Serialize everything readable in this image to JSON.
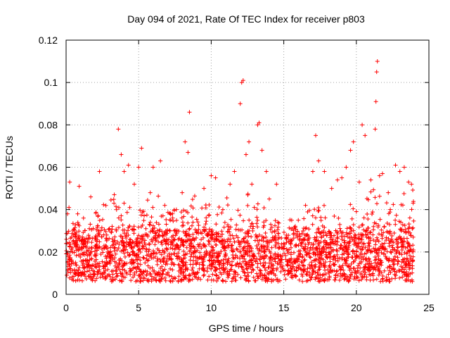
{
  "chart_data": {
    "type": "scatter",
    "title": "Day 094 of 2021, Rate Of TEC Index for receiver p803",
    "xlabel": "GPS time / hours",
    "ylabel": "ROTI / TECUs",
    "xlim": [
      0,
      25
    ],
    "ylim": [
      0,
      0.12
    ],
    "xticks": [
      0,
      5,
      10,
      15,
      20,
      25
    ],
    "xtick_labels": [
      "0",
      "5",
      "10",
      "15",
      "20",
      "25"
    ],
    "yticks": [
      0,
      0.02,
      0.04,
      0.06,
      0.08,
      0.1,
      0.12
    ],
    "ytick_labels": [
      "0",
      "0.02",
      "0.04",
      "0.06",
      "0.08",
      "0.1",
      "0.12"
    ],
    "grid": true,
    "marker": "+",
    "color": "#ff0000",
    "series": [
      {
        "name": "ROTI",
        "sample_points": [
          [
            0.1,
            0.038
          ],
          [
            0.2,
            0.041
          ],
          [
            0.25,
            0.053
          ],
          [
            0.3,
            0.012
          ],
          [
            0.5,
            0.028
          ],
          [
            0.8,
            0.038
          ],
          [
            0.9,
            0.051
          ],
          [
            1.2,
            0.036
          ],
          [
            1.5,
            0.015
          ],
          [
            1.6,
            0.031
          ],
          [
            1.7,
            0.046
          ],
          [
            2.0,
            0.018
          ],
          [
            2.3,
            0.058
          ],
          [
            2.8,
            0.028
          ],
          [
            3.3,
            0.043
          ],
          [
            3.6,
            0.078
          ],
          [
            3.8,
            0.066
          ],
          [
            4.0,
            0.058
          ],
          [
            4.3,
            0.061
          ],
          [
            4.7,
            0.052
          ],
          [
            5.0,
            0.06
          ],
          [
            5.2,
            0.069
          ],
          [
            5.5,
            0.031
          ],
          [
            5.8,
            0.048
          ],
          [
            6.0,
            0.06
          ],
          [
            6.5,
            0.063
          ],
          [
            6.8,
            0.042
          ],
          [
            7.2,
            0.038
          ],
          [
            7.6,
            0.04
          ],
          [
            8.0,
            0.048
          ],
          [
            8.2,
            0.072
          ],
          [
            8.4,
            0.067
          ],
          [
            8.5,
            0.086
          ],
          [
            9.0,
            0.03
          ],
          [
            9.5,
            0.05
          ],
          [
            10.0,
            0.056
          ],
          [
            10.3,
            0.055
          ],
          [
            10.8,
            0.04
          ],
          [
            11.3,
            0.052
          ],
          [
            11.6,
            0.058
          ],
          [
            12.0,
            0.09
          ],
          [
            12.1,
            0.1
          ],
          [
            12.2,
            0.101
          ],
          [
            12.4,
            0.066
          ],
          [
            12.6,
            0.072
          ],
          [
            12.8,
            0.052
          ],
          [
            13.2,
            0.08
          ],
          [
            13.3,
            0.081
          ],
          [
            13.5,
            0.068
          ],
          [
            13.8,
            0.058
          ],
          [
            14.0,
            0.045
          ],
          [
            14.5,
            0.052
          ],
          [
            15.0,
            0.024
          ],
          [
            15.5,
            0.022
          ],
          [
            16.0,
            0.035
          ],
          [
            16.5,
            0.042
          ],
          [
            17.0,
            0.058
          ],
          [
            17.2,
            0.075
          ],
          [
            17.4,
            0.063
          ],
          [
            17.8,
            0.058
          ],
          [
            18.3,
            0.05
          ],
          [
            18.7,
            0.054
          ],
          [
            19.0,
            0.055
          ],
          [
            19.3,
            0.06
          ],
          [
            19.6,
            0.068
          ],
          [
            19.8,
            0.072
          ],
          [
            20.2,
            0.053
          ],
          [
            20.4,
            0.08
          ],
          [
            20.6,
            0.075
          ],
          [
            21.0,
            0.054
          ],
          [
            21.3,
            0.078
          ],
          [
            21.35,
            0.091
          ],
          [
            21.4,
            0.105
          ],
          [
            21.45,
            0.11
          ],
          [
            21.6,
            0.056
          ],
          [
            21.8,
            0.057
          ],
          [
            22.2,
            0.048
          ],
          [
            22.7,
            0.061
          ],
          [
            23.0,
            0.058
          ],
          [
            23.3,
            0.06
          ],
          [
            23.6,
            0.053
          ],
          [
            23.8,
            0.052
          ]
        ]
      }
    ],
    "baseline_band": {
      "typical_min": 0.006,
      "typical_max": 0.035
    }
  }
}
